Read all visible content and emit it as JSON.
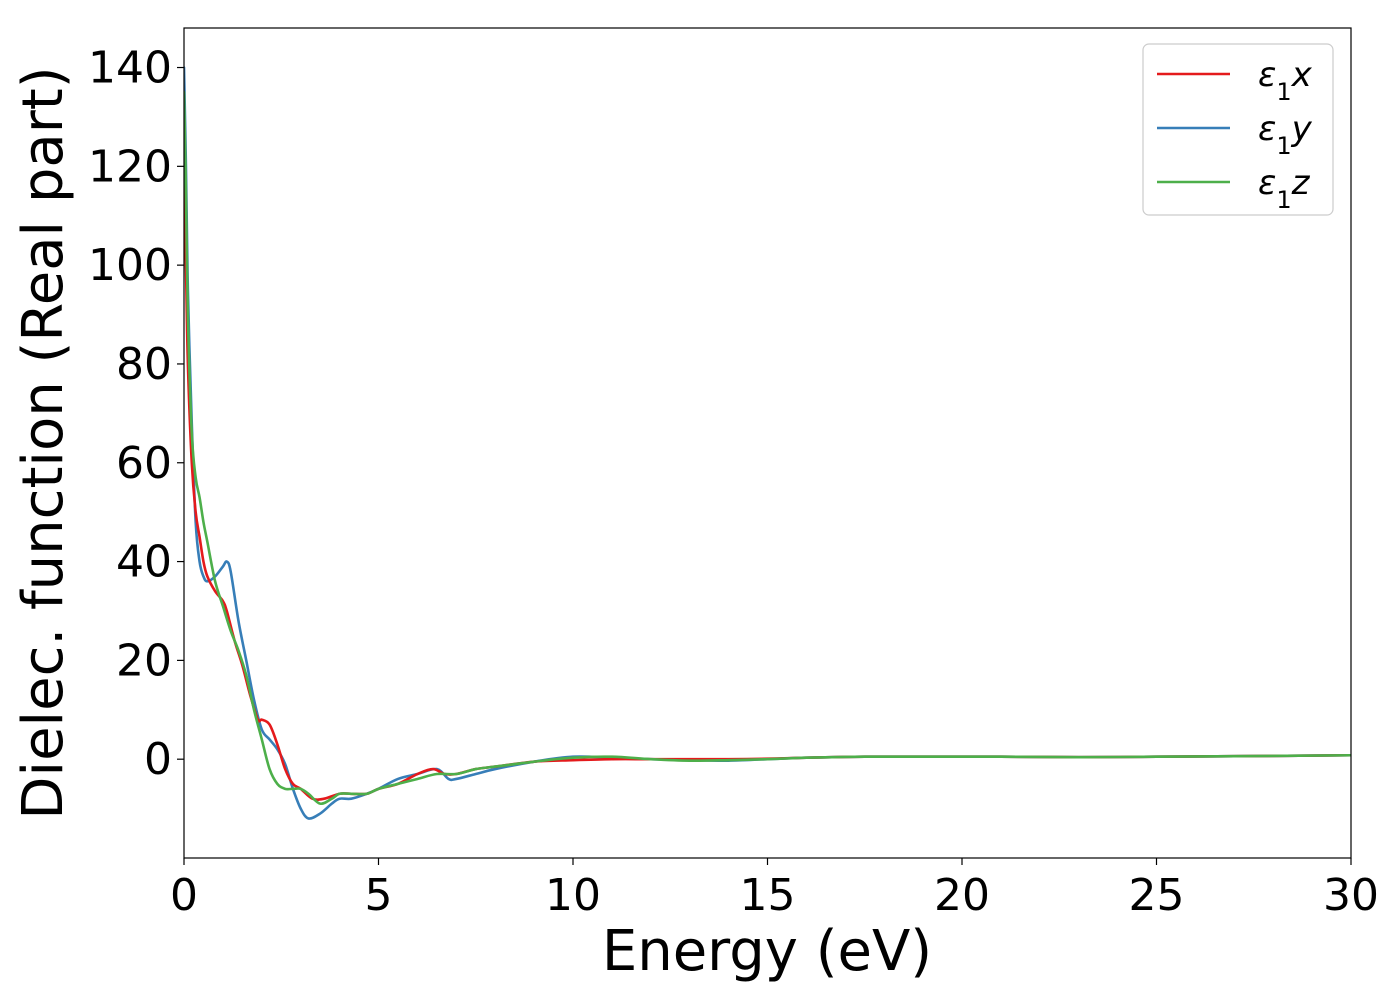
{
  "chart_data": {
    "type": "line",
    "title": "",
    "xlabel": "Energy (eV)",
    "ylabel": "Dielec. function (Real part)",
    "xlim": [
      0,
      30
    ],
    "ylim": [
      -20,
      148
    ],
    "xticks": [
      0,
      5,
      10,
      15,
      20,
      25,
      30
    ],
    "yticks": [
      0,
      20,
      40,
      60,
      80,
      100,
      120,
      140
    ],
    "xtick_labels": [
      "0",
      "5",
      "10",
      "15",
      "20",
      "25",
      "30"
    ],
    "ytick_labels": [
      "0",
      "20",
      "40",
      "60",
      "80",
      "100",
      "120",
      "140"
    ],
    "grid": false,
    "legend_position": "top-right",
    "series": [
      {
        "name": "ε1x",
        "legend_base": "ε",
        "legend_sub": "1",
        "legend_var": "x",
        "color": "#e41a1c",
        "x": [
          0,
          0.05,
          0.1,
          0.2,
          0.3,
          0.4,
          0.5,
          0.6,
          0.8,
          1.0,
          1.1,
          1.3,
          1.5,
          1.7,
          1.9,
          2.0,
          2.2,
          2.4,
          2.6,
          2.8,
          3.0,
          3.3,
          3.6,
          4.0,
          4.3,
          4.7,
          5.0,
          5.5,
          6.0,
          6.4,
          6.7,
          7.0,
          7.5,
          8.0,
          9.0,
          10.0,
          11.0,
          12.0,
          13.0,
          14.0,
          15.0,
          16.0,
          17.5,
          19.0,
          21.0,
          23.0,
          25.0,
          27.0,
          30.0
        ],
        "y": [
          117,
          100,
          80,
          60,
          50,
          45,
          40,
          37,
          34,
          32,
          30,
          24,
          19,
          13,
          8,
          8,
          7,
          3,
          -2,
          -5,
          -6,
          -8,
          -8,
          -7,
          -7,
          -7,
          -6,
          -5,
          -3,
          -2,
          -3,
          -3,
          -2,
          -1.5,
          -0.5,
          -0.2,
          0,
          0,
          0,
          0,
          0.1,
          0.3,
          0.5,
          0.5,
          0.5,
          0.4,
          0.5,
          0.6,
          0.8
        ]
      },
      {
        "name": "ε1y",
        "legend_base": "ε",
        "legend_sub": "1",
        "legend_var": "y",
        "color": "#377eb8",
        "x": [
          0,
          0.05,
          0.1,
          0.2,
          0.3,
          0.4,
          0.5,
          0.6,
          0.8,
          1.0,
          1.1,
          1.2,
          1.4,
          1.6,
          1.8,
          2.0,
          2.2,
          2.4,
          2.6,
          2.8,
          3.0,
          3.2,
          3.5,
          3.8,
          4.0,
          4.3,
          4.7,
          5.0,
          5.5,
          6.0,
          6.5,
          6.8,
          7.0,
          7.5,
          8.0,
          9.0,
          10.0,
          11.0,
          12.0,
          13.0,
          14.0,
          15.0,
          16.0,
          17.5,
          19.0,
          21.0,
          23.0,
          25.0,
          27.0,
          30.0
        ],
        "y": [
          140,
          120,
          95,
          68,
          48,
          40,
          37,
          36,
          37,
          39,
          40,
          38,
          28,
          20,
          12,
          6,
          4,
          2,
          -1,
          -6,
          -10,
          -12,
          -11,
          -9,
          -8,
          -8,
          -7,
          -6,
          -4,
          -3,
          -2,
          -4,
          -4,
          -3,
          -2,
          -0.5,
          0.5,
          0.3,
          0,
          -0.2,
          -0.3,
          0,
          0.3,
          0.5,
          0.5,
          0.5,
          0.4,
          0.5,
          0.6,
          0.8
        ]
      },
      {
        "name": "ε1z",
        "legend_base": "ε",
        "legend_sub": "1",
        "legend_var": "z",
        "color": "#4daf4a",
        "x": [
          0,
          0.05,
          0.1,
          0.2,
          0.3,
          0.4,
          0.5,
          0.6,
          0.8,
          1.0,
          1.2,
          1.4,
          1.6,
          1.8,
          2.0,
          2.2,
          2.4,
          2.6,
          2.8,
          3.0,
          3.2,
          3.5,
          3.8,
          4.0,
          4.3,
          4.7,
          5.0,
          5.5,
          6.0,
          6.5,
          7.0,
          7.5,
          8.0,
          9.0,
          10.0,
          11.0,
          12.0,
          13.0,
          14.0,
          15.0,
          16.0,
          17.5,
          19.0,
          21.0,
          23.0,
          25.0,
          27.0,
          30.0
        ],
        "y": [
          135,
          115,
          90,
          66,
          57,
          53,
          48,
          44,
          36,
          31,
          26,
          22,
          17,
          10,
          4,
          -2,
          -5,
          -6,
          -6,
          -6,
          -7,
          -9,
          -8,
          -7,
          -7,
          -7,
          -6,
          -5,
          -4,
          -3,
          -3,
          -2,
          -1.5,
          -0.5,
          0.3,
          0.5,
          0,
          -0.3,
          -0.2,
          0,
          0.3,
          0.5,
          0.5,
          0.5,
          0.4,
          0.5,
          0.6,
          0.8
        ]
      }
    ]
  }
}
